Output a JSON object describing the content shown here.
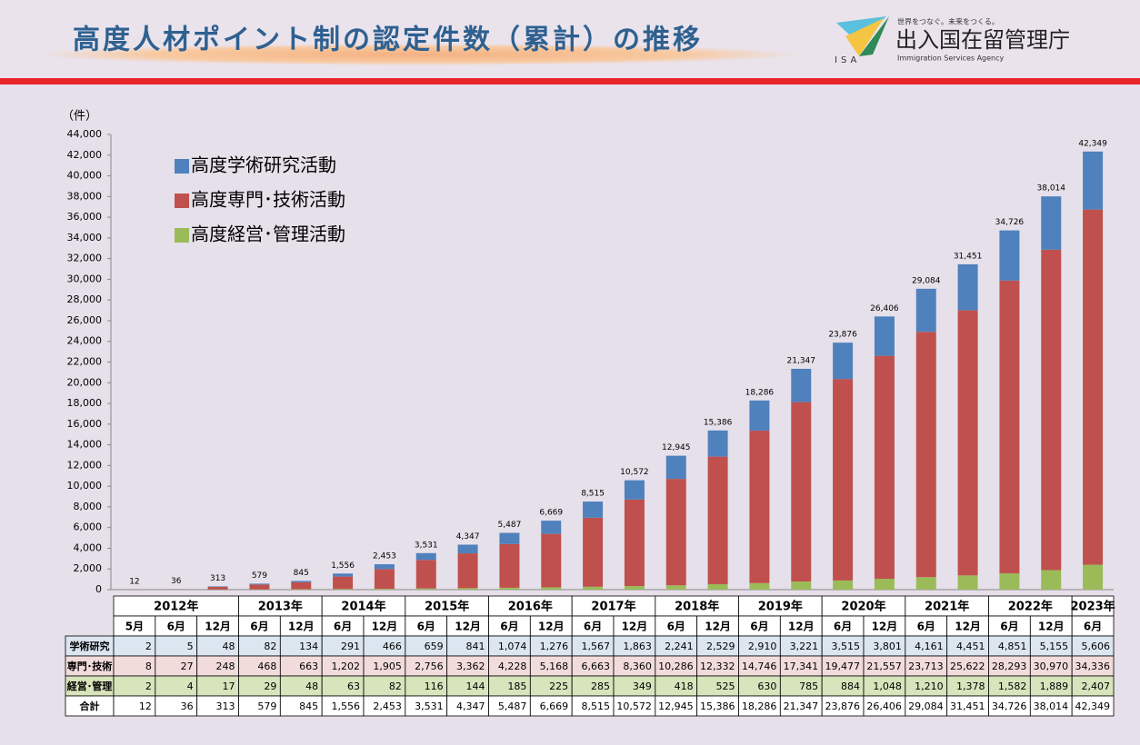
{
  "header": {
    "title": "高度人材ポイント制の認定件数（累計）の推移",
    "logo_tagline": "世界をつなぐ。未来をつくる。",
    "logo_name": "出入国在留管理庁",
    "logo_english": "Immigration Services Agency",
    "logo_mark": "ISA"
  },
  "chart_data": {
    "type": "stacked_bar",
    "y_unit": "（件）",
    "ylim": [
      0,
      44000
    ],
    "yticks": [
      0,
      {
        "value": 2000,
        "label": "2,000"
      },
      {
        "value": 4000,
        "label": "4,000"
      },
      {
        "value": 6000,
        "label": "6,000"
      },
      {
        "value": 8000,
        "label": "8,000"
      },
      {
        "value": 10000,
        "label": "10,000"
      },
      {
        "value": 12000,
        "label": "12,000"
      },
      {
        "value": 14000,
        "label": "14,000"
      },
      {
        "value": 16000,
        "label": "16,000"
      },
      {
        "value": 18000,
        "label": "18,000"
      },
      {
        "value": 20000,
        "label": "20,000"
      },
      {
        "value": 22000,
        "label": "22,000"
      },
      {
        "value": 24000,
        "label": "24,000"
      },
      {
        "value": 26000,
        "label": "26,000"
      },
      {
        "value": 28000,
        "label": "28,000"
      },
      {
        "value": 30000,
        "label": "30,000"
      },
      {
        "value": 32000,
        "label": "32,000"
      },
      {
        "value": 34000,
        "label": "34,000"
      },
      {
        "value": 36000,
        "label": "36,000"
      },
      {
        "value": 38000,
        "label": "38,000"
      },
      {
        "value": 40000,
        "label": "40,000"
      },
      {
        "value": 42000,
        "label": "42,000"
      },
      {
        "value": 44000,
        "label": "44,000"
      }
    ],
    "years": [
      "2012年",
      "2013年",
      "2014年",
      "2015年",
      "2016年",
      "2017年",
      "2018年",
      "2019年",
      "2020年",
      "2021年",
      "2022年",
      "2023年"
    ],
    "categories": [
      "5月",
      "6月",
      "12月",
      "6月",
      "12月",
      "6月",
      "12月",
      "6月",
      "12月",
      "6月",
      "12月",
      "6月",
      "12月",
      "6月",
      "12月",
      "6月",
      "12月",
      "6月",
      "12月",
      "6月",
      "12月",
      "6月",
      "12月",
      "6月"
    ],
    "series": [
      {
        "name": "高度経営･管理活動",
        "table_label": "経営･管理",
        "color": "#9bbb59",
        "row_color": "#d7e4bc",
        "values": [
          2,
          4,
          17,
          29,
          48,
          63,
          82,
          116,
          144,
          185,
          225,
          285,
          349,
          418,
          525,
          630,
          785,
          884,
          1048,
          1210,
          1378,
          1582,
          1889,
          2407
        ],
        "value_labels": [
          "2",
          "4",
          "17",
          "29",
          "48",
          "63",
          "82",
          "116",
          "144",
          "185",
          "225",
          "285",
          "349",
          "418",
          "525",
          "630",
          "785",
          "884",
          "1,048",
          "1,210",
          "1,378",
          "1,582",
          "1,889",
          "2,407"
        ]
      },
      {
        "name": "高度専門･技術活動",
        "table_label": "専門･技術",
        "color": "#c0504d",
        "row_color": "#f2dcdb",
        "values": [
          8,
          27,
          248,
          468,
          663,
          1202,
          1905,
          2756,
          3362,
          4228,
          5168,
          6663,
          8360,
          10286,
          12332,
          14746,
          17341,
          19477,
          21557,
          23713,
          25622,
          28293,
          30970,
          34336
        ],
        "value_labels": [
          "8",
          "27",
          "248",
          "468",
          "663",
          "1,202",
          "1,905",
          "2,756",
          "3,362",
          "4,228",
          "5,168",
          "6,663",
          "8,360",
          "10,286",
          "12,332",
          "14,746",
          "17,341",
          "19,477",
          "21,557",
          "23,713",
          "25,622",
          "28,293",
          "30,970",
          "34,336"
        ]
      },
      {
        "name": "高度学術研究活動",
        "table_label": "学術研究",
        "color": "#4f81bd",
        "row_color": "#dce6f1",
        "values": [
          2,
          5,
          48,
          82,
          134,
          291,
          466,
          659,
          841,
          1074,
          1276,
          1567,
          1863,
          2241,
          2529,
          2910,
          3221,
          3515,
          3801,
          4161,
          4451,
          4851,
          5155,
          5606
        ],
        "value_labels": [
          "2",
          "5",
          "48",
          "82",
          "134",
          "291",
          "466",
          "659",
          "841",
          "1,074",
          "1,276",
          "1,567",
          "1,863",
          "2,241",
          "2,529",
          "2,910",
          "3,221",
          "3,515",
          "3,801",
          "4,161",
          "4,451",
          "4,851",
          "5,155",
          "5,606"
        ]
      }
    ],
    "total_label": "合計",
    "totals": [
      12,
      36,
      313,
      579,
      845,
      1556,
      2453,
      3531,
      4347,
      5487,
      6669,
      8515,
      10572,
      12945,
      15386,
      18286,
      21347,
      23876,
      26406,
      29084,
      31451,
      34726,
      38014,
      42349
    ],
    "total_value_labels": [
      "12",
      "36",
      "313",
      "579",
      "845",
      "1,556",
      "2,453",
      "3,531",
      "4,347",
      "5,487",
      "6,669",
      "8,515",
      "10,572",
      "12,945",
      "15,386",
      "18,286",
      "21,347",
      "23,876",
      "26,406",
      "29,084",
      "31,451",
      "34,726",
      "38,014",
      "42,349"
    ]
  }
}
